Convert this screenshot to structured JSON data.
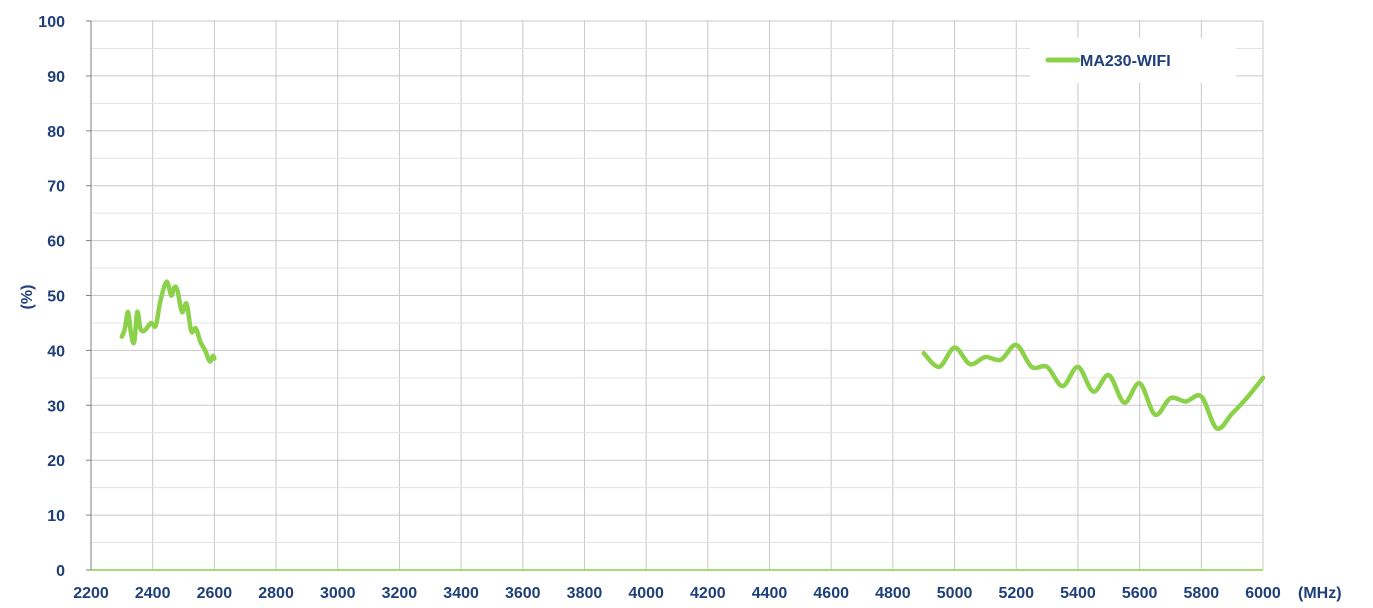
{
  "chart_data": {
    "type": "line",
    "ylabel": "(%)",
    "xunit": "(MHz)",
    "xlim": [
      2200,
      6000
    ],
    "ylim": [
      0,
      100
    ],
    "xticks": [
      2200,
      2400,
      2600,
      2800,
      3000,
      3200,
      3400,
      3600,
      3800,
      4000,
      4200,
      4400,
      4600,
      4800,
      5000,
      5200,
      5400,
      5600,
      5800,
      6000
    ],
    "yticks": [
      0,
      10,
      20,
      30,
      40,
      50,
      60,
      70,
      80,
      90,
      100
    ],
    "grid": true,
    "legend_position": "top-right",
    "series": [
      {
        "name": "MA230-WIFI",
        "color": "#8cd14a",
        "segments": [
          [
            [
              2300,
              42.5
            ],
            [
              2310,
              44
            ],
            [
              2320,
              47
            ],
            [
              2330,
              43
            ],
            [
              2340,
              41.5
            ],
            [
              2350,
              47
            ],
            [
              2360,
              44
            ],
            [
              2370,
              43.5
            ],
            [
              2380,
              44
            ],
            [
              2395,
              45
            ],
            [
              2410,
              44.5
            ],
            [
              2425,
              49
            ],
            [
              2445,
              52.5
            ],
            [
              2460,
              50
            ],
            [
              2470,
              51.5
            ],
            [
              2480,
              51
            ],
            [
              2495,
              47
            ],
            [
              2510,
              48.5
            ],
            [
              2525,
              43.5
            ],
            [
              2540,
              44
            ],
            [
              2555,
              41.5
            ],
            [
              2570,
              40
            ],
            [
              2585,
              38
            ],
            [
              2595,
              39
            ],
            [
              2600,
              38.5
            ]
          ],
          [
            [
              4900,
              39.5
            ],
            [
              4950,
              37
            ],
            [
              5000,
              40.5
            ],
            [
              5050,
              37.5
            ],
            [
              5100,
              38.8
            ],
            [
              5150,
              38.3
            ],
            [
              5200,
              41
            ],
            [
              5250,
              37
            ],
            [
              5300,
              37
            ],
            [
              5350,
              33.5
            ],
            [
              5400,
              37
            ],
            [
              5450,
              32.5
            ],
            [
              5500,
              35.5
            ],
            [
              5550,
              30.5
            ],
            [
              5600,
              34
            ],
            [
              5650,
              28.3
            ],
            [
              5700,
              31.3
            ],
            [
              5750,
              30.7
            ],
            [
              5800,
              31.6
            ],
            [
              5850,
              25.8
            ],
            [
              5900,
              28.5
            ],
            [
              5950,
              31.5
            ],
            [
              6000,
              35
            ]
          ]
        ]
      }
    ]
  }
}
